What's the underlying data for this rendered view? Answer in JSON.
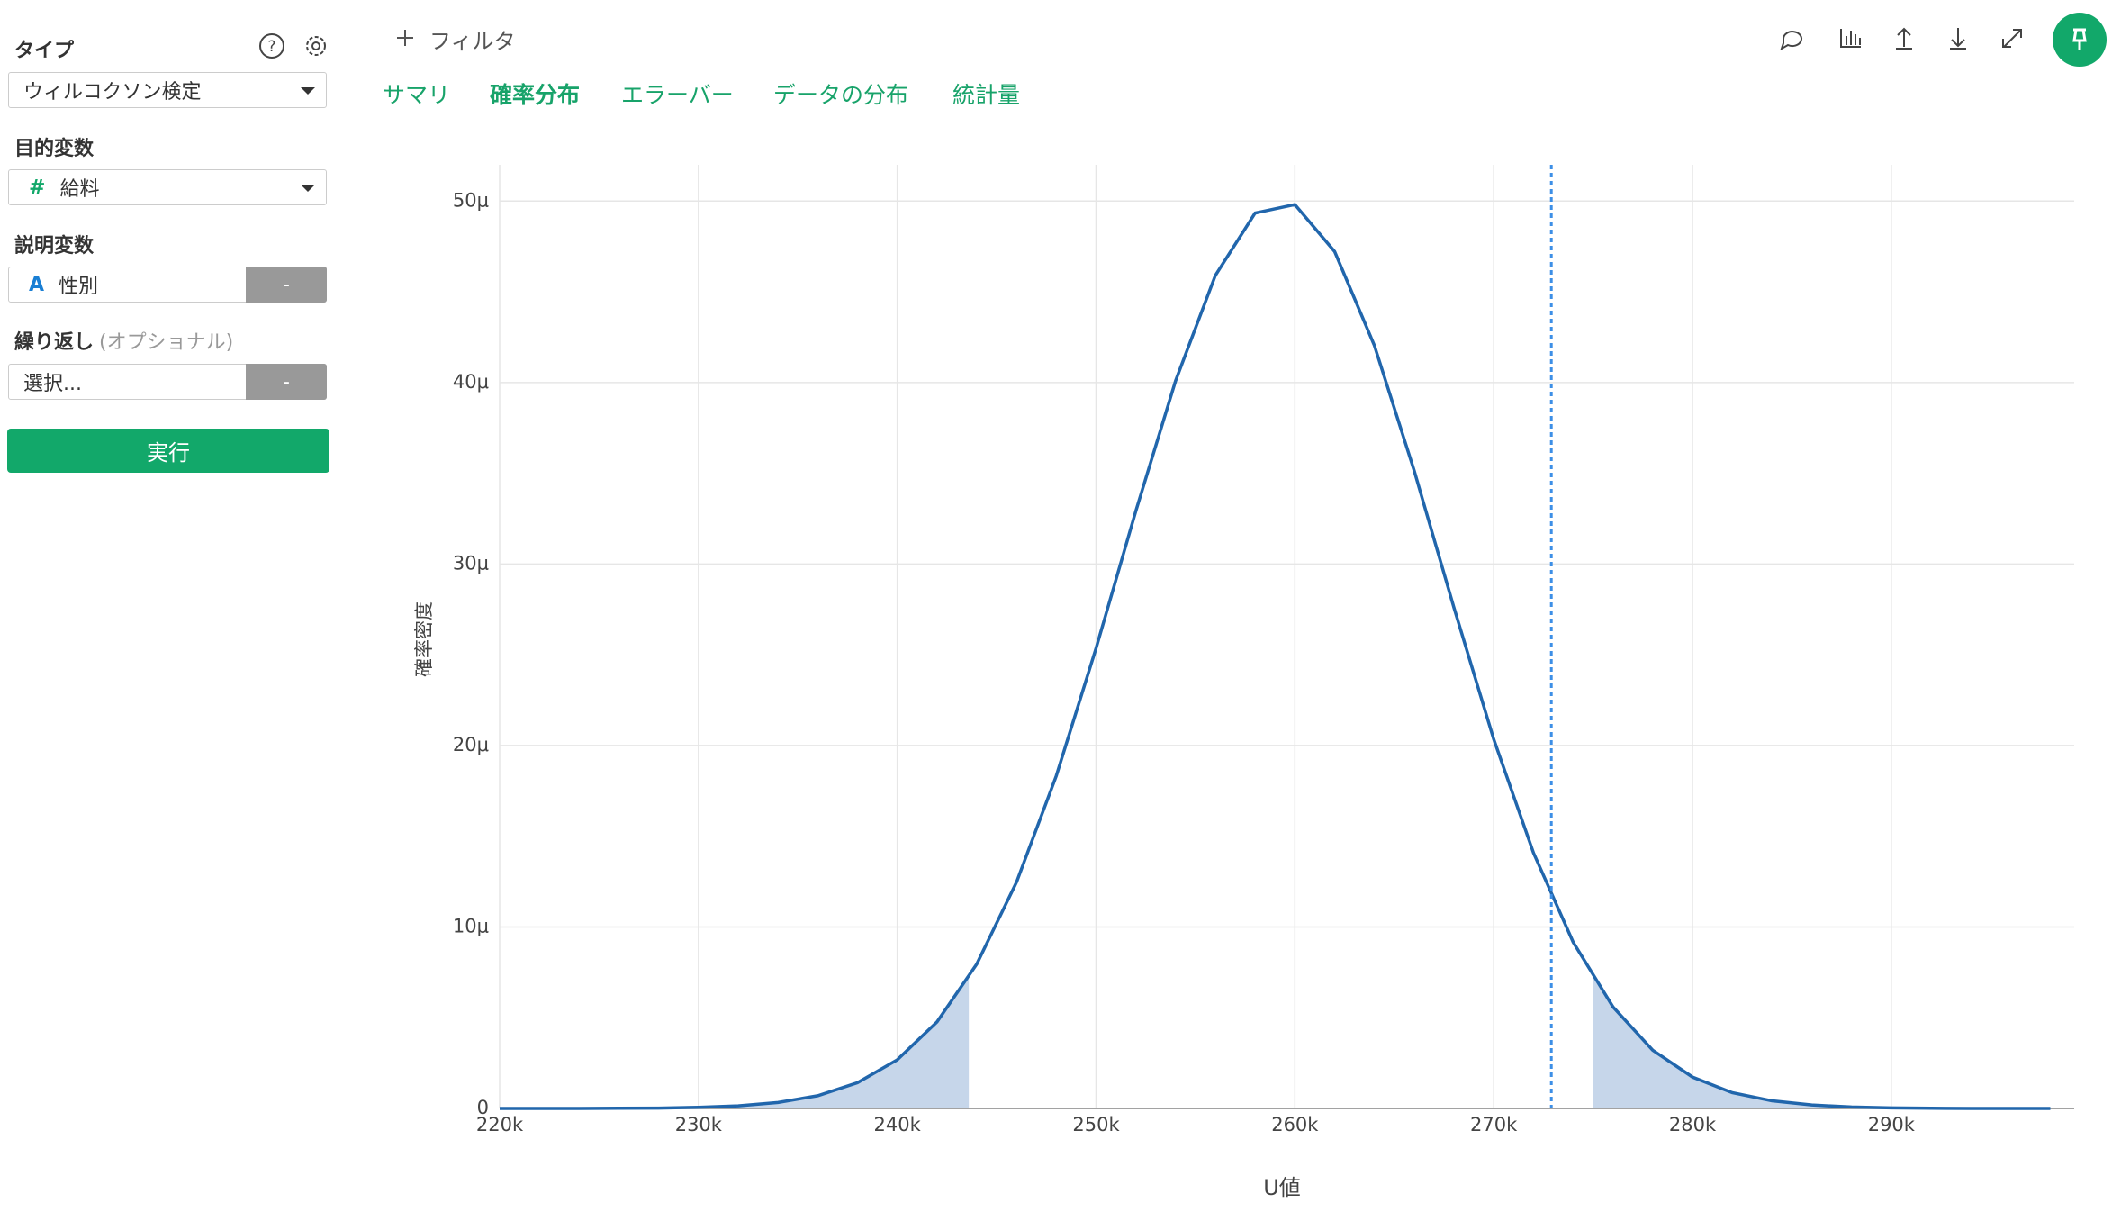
{
  "sidebar": {
    "type_label": "タイプ",
    "help_icon": "?",
    "type_value": "ウィルコクソン検定",
    "target_label": "目的変数",
    "target_icon": "#",
    "target_value": "給料",
    "explanatory_label": "説明変数",
    "explanatory_icon": "A",
    "explanatory_value": "性別",
    "explanatory_button": "-",
    "repeat_label": "繰り返し",
    "repeat_optional": "(オプショナル)",
    "repeat_placeholder": "選択...",
    "repeat_button": "-",
    "run_button": "実行"
  },
  "toolbar": {
    "filter": "フィルタ"
  },
  "tabs": [
    "サマリ",
    "確率分布",
    "エラーバー",
    "データの分布",
    "統計量"
  ],
  "active_tab": 1,
  "chart_data": {
    "type": "line",
    "xlabel": "U値",
    "ylabel": "確率密度",
    "x": [
      220000,
      222000,
      224000,
      226000,
      228000,
      230000,
      232000,
      234000,
      236000,
      238000,
      240000,
      242000,
      244000,
      246000,
      248000,
      250000,
      252000,
      254000,
      256000,
      258000,
      260000,
      262000,
      264000,
      266000,
      268000,
      270000,
      272000,
      274000,
      276000,
      278000,
      280000,
      282000,
      284000,
      286000,
      288000,
      290000,
      292000,
      294000,
      296000,
      298000
    ],
    "values": [
      0,
      0,
      0,
      1e-08,
      2e-08,
      6e-08,
      1.4e-07,
      3.3e-07,
      7e-07,
      1.42e-06,
      2.68e-06,
      4.77e-06,
      7.96e-06,
      1.247e-05,
      1.833e-05,
      2.536e-05,
      3.292e-05,
      4.01e-05,
      4.59e-05,
      4.934e-05,
      4.981e-05,
      4.722e-05,
      4.204e-05,
      3.515e-05,
      2.76e-05,
      2.035e-05,
      1.409e-05,
      9.16e-06,
      5.6e-06,
      3.21e-06,
      1.73e-06,
      8.7e-07,
      4.2e-07,
      1.9e-07,
      8e-08,
      3e-08,
      1e-08,
      0,
      0,
      0
    ],
    "color": "#2166ac",
    "fill_color": "#c6d6ea",
    "shade_ranges": [
      [
        220000,
        243600
      ],
      [
        275000,
        299200
      ]
    ],
    "critical_value": 272900,
    "critical_color": "#3d8fe6",
    "xlim": [
      220000,
      299200
    ],
    "ylim": [
      0,
      5.2e-05
    ],
    "xticks": [
      {
        "value": 220000,
        "label": "220k"
      },
      {
        "value": 230000,
        "label": "230k"
      },
      {
        "value": 240000,
        "label": "240k"
      },
      {
        "value": 250000,
        "label": "250k"
      },
      {
        "value": 260000,
        "label": "260k"
      },
      {
        "value": 270000,
        "label": "270k"
      },
      {
        "value": 280000,
        "label": "280k"
      },
      {
        "value": 290000,
        "label": "290k"
      }
    ],
    "yticks": [
      0,
      {
        "value": 1e-05,
        "label": "10μ"
      },
      {
        "value": 2e-05,
        "label": "20μ"
      },
      {
        "value": 3e-05,
        "label": "30μ"
      },
      {
        "value": 4e-05,
        "label": "40μ"
      },
      {
        "value": 5e-05,
        "label": "50μ"
      }
    ],
    "grid": true
  }
}
